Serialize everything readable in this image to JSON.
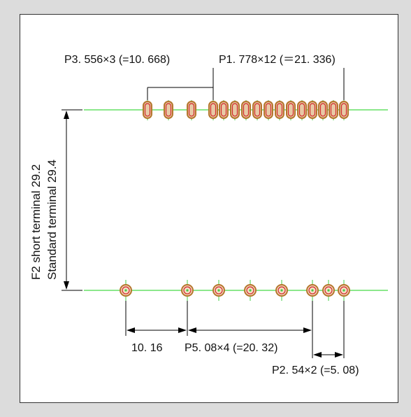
{
  "labels": {
    "top_left_pitch": "P3. 556×3  (=10. 668)",
    "top_right_pitch": "P1. 778×12  (＝21. 336)",
    "bottom_left_dim": "10. 16",
    "bottom_mid_pitch": "P5. 08×4 (=20. 32)",
    "bottom_right_pitch": "P2. 54×2 (=5. 08)",
    "side_f2": "F2 short terminal  29.2",
    "side_std": "Standard terminal  29.4"
  },
  "colors": {
    "background": "#dcdcdc",
    "panel": "#ffffff",
    "pcb_line": "#66e066",
    "pad_outline": "#b5752d",
    "pad_inner": "#d12a2a",
    "center_line": "#44cc44"
  }
}
